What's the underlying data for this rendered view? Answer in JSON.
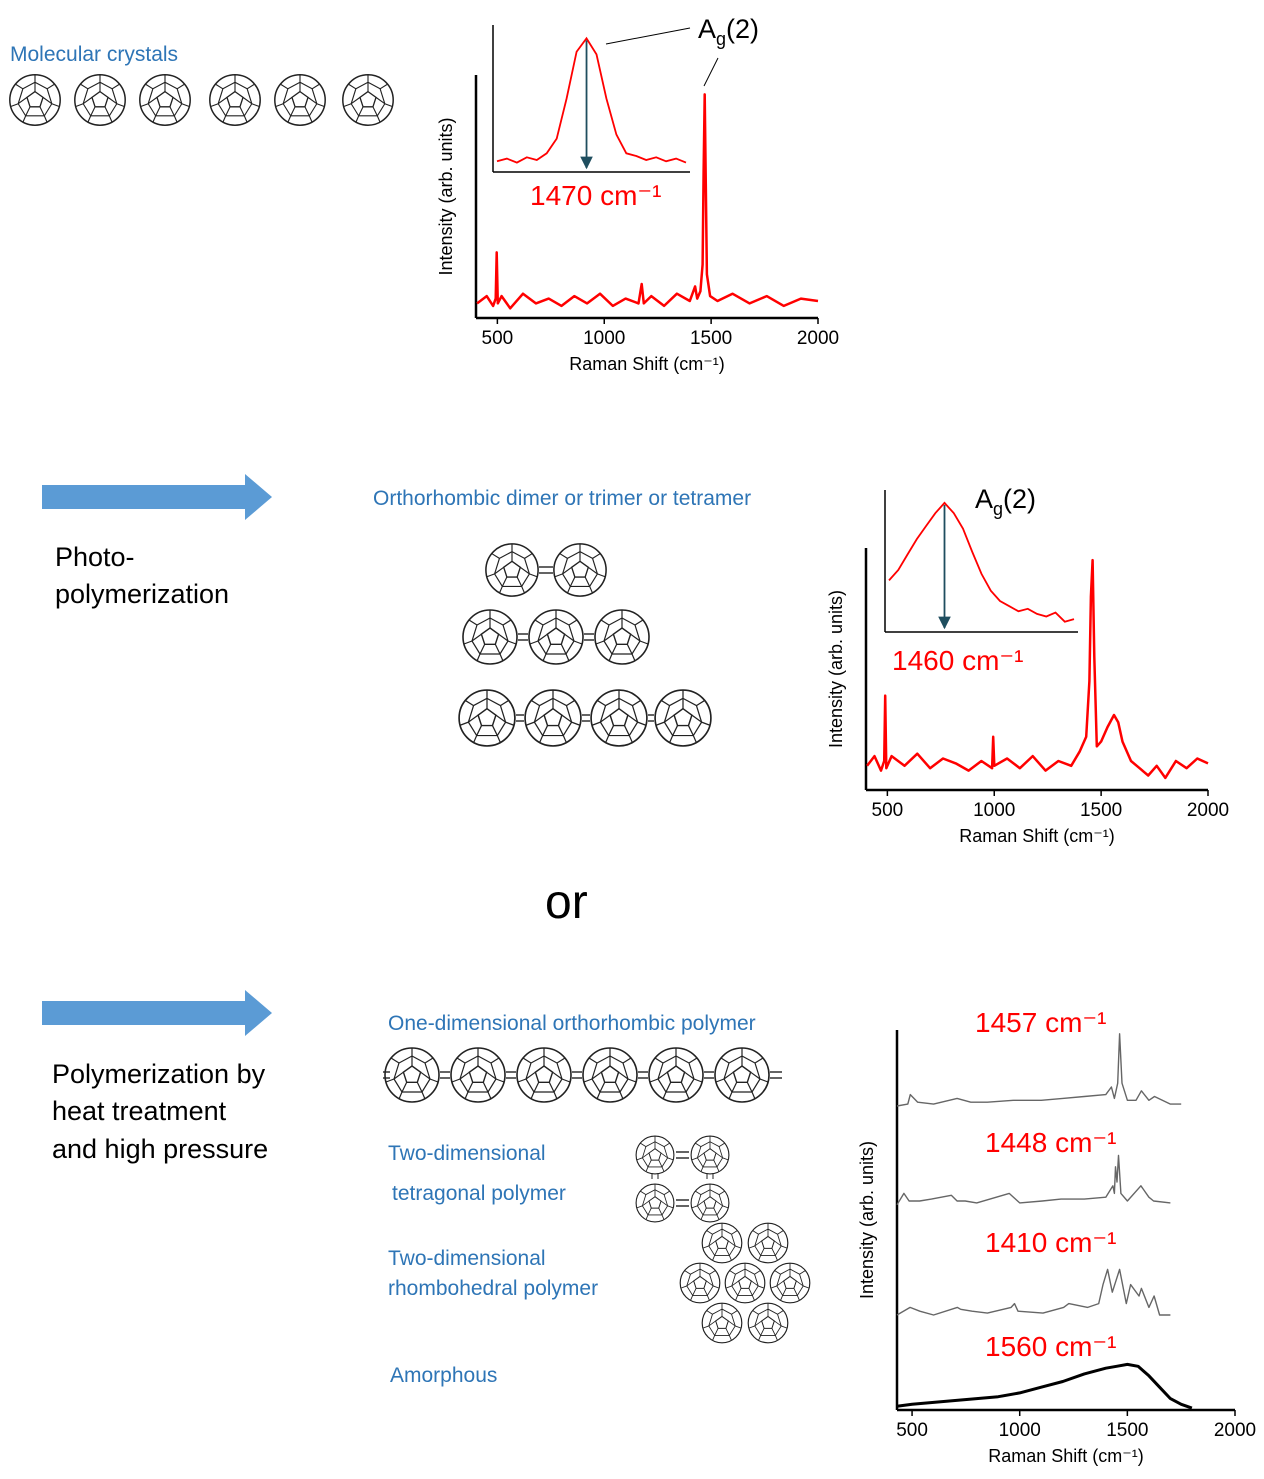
{
  "molecular_crystals": "Molecular crystals",
  "photo_label": [
    "Photo-",
    "polymerization"
  ],
  "dimer_label": "Orthorhombic dimer or trimer or tetramer",
  "or": "or",
  "heat_label": [
    "Polymerization by",
    "heat treatment",
    "and high pressure"
  ],
  "polymer_labels": {
    "one_d": "One-dimensional orthorhombic polymer",
    "tetragonal": [
      "Two-dimensional",
      "tetragonal polymer"
    ],
    "rhombohedral": [
      "Two-dimensional",
      "rhombohedral polymer"
    ],
    "amorphous": "Amorphous"
  },
  "spectra": [
    {
      "type": "line",
      "xlabel": "Raman Shift (cm⁻¹)",
      "ylabel": "Intensity (arb. units)",
      "xlim": [
        400,
        2000
      ],
      "ylim": [
        0,
        100
      ],
      "xticks": [
        500,
        1000,
        1500,
        2000
      ],
      "color": "#ff0000",
      "x": [
        405,
        450,
        480,
        492,
        497,
        502,
        520,
        560,
        620,
        680,
        740,
        800,
        860,
        920,
        980,
        1040,
        1100,
        1160,
        1175,
        1185,
        1220,
        1280,
        1340,
        1400,
        1425,
        1435,
        1450,
        1460,
        1465,
        1470,
        1475,
        1480,
        1495,
        1530,
        1600,
        1680,
        1760,
        1840,
        1920,
        2000
      ],
      "values": [
        6,
        9,
        5,
        8,
        27,
        6,
        9,
        4,
        10,
        6,
        8,
        5,
        9,
        6,
        10,
        5,
        8,
        6,
        14,
        6,
        9,
        5,
        10,
        7,
        13,
        8,
        11,
        22,
        60,
        92,
        55,
        18,
        9,
        7,
        10,
        6,
        9,
        5,
        8,
        7
      ],
      "inset": {
        "ylim": [
          0,
          110
        ],
        "values": [
          8,
          10,
          7,
          11,
          9,
          14,
          25,
          55,
          90,
          100,
          88,
          55,
          28,
          14,
          12,
          9,
          11,
          8,
          10,
          7
        ],
        "peak_label": "1470 cm⁻¹",
        "mode_label": [
          "A",
          "g",
          "(2)"
        ]
      }
    },
    {
      "type": "line",
      "xlabel": "Raman Shift (cm⁻¹)",
      "ylabel": "Intensity (arb. units)",
      "xlim": [
        400,
        2000
      ],
      "ylim": [
        0,
        100
      ],
      "xticks": [
        500,
        1000,
        1500,
        2000
      ],
      "color": "#ff0000",
      "x": [
        405,
        440,
        470,
        485,
        490,
        495,
        520,
        580,
        640,
        700,
        760,
        820,
        880,
        940,
        990,
        995,
        1000,
        1060,
        1120,
        1180,
        1240,
        1300,
        1360,
        1400,
        1430,
        1445,
        1452,
        1460,
        1468,
        1480,
        1500,
        1530,
        1560,
        1580,
        1600,
        1640,
        1680,
        1720,
        1760,
        1800,
        1850,
        1900,
        1950,
        2000
      ],
      "values": [
        10,
        14,
        8,
        12,
        39,
        9,
        14,
        10,
        15,
        9,
        13,
        11,
        8,
        12,
        9,
        22,
        10,
        13,
        9,
        14,
        8,
        12,
        10,
        16,
        22,
        45,
        80,
        95,
        55,
        18,
        20,
        26,
        31,
        28,
        20,
        12,
        9,
        6,
        10,
        5,
        12,
        9,
        13,
        11
      ],
      "inset": {
        "ylim": [
          0,
          110
        ],
        "values": [
          40,
          48,
          60,
          72,
          82,
          92,
          100,
          92,
          80,
          62,
          45,
          32,
          24,
          20,
          16,
          18,
          14,
          12,
          15,
          8,
          10
        ],
        "peak_label": "1460 cm⁻¹",
        "mode_label": [
          "A",
          "g",
          "(2)"
        ]
      }
    },
    {
      "type": "line",
      "xlabel": "Raman Shift (cm⁻¹)",
      "ylabel": "Intensity (arb. units)",
      "xlim": [
        430,
        2000
      ],
      "ylim": [
        0,
        100
      ],
      "xticks": [
        500,
        1000,
        1500,
        2000
      ],
      "series": [
        {
          "name": "1457 cm⁻¹",
          "color": "#666666",
          "x": [
            430,
            480,
            492,
            526,
            600,
            709,
            773,
            850,
            970,
            1100,
            1200,
            1300,
            1400,
            1426,
            1440,
            1455,
            1464,
            1475,
            1500,
            1540,
            1565,
            1600,
            1626,
            1700,
            1750
          ],
          "values": [
            80,
            80.5,
            83,
            81,
            80.5,
            82,
            81,
            81,
            81.5,
            81.5,
            82,
            82.5,
            83,
            85,
            82,
            86,
            99,
            86,
            81.5,
            81.5,
            84,
            81.5,
            82.5,
            80.5,
            80.5
          ]
        },
        {
          "name": "1448 cm⁻¹",
          "color": "#666666",
          "x": [
            430,
            462,
            486,
            535,
            590,
            682,
            709,
            747,
            800,
            951,
            1000,
            1105,
            1192,
            1300,
            1400,
            1433,
            1440,
            1445,
            1452,
            1459,
            1470,
            1500,
            1563,
            1600,
            1622,
            1700
          ],
          "values": [
            54,
            57,
            55,
            55,
            55.5,
            56.5,
            55,
            55,
            54.5,
            57,
            54.5,
            55,
            55.5,
            55.5,
            56,
            59,
            57,
            64,
            60,
            67,
            57,
            55,
            59,
            56,
            55,
            54.5
          ]
        },
        {
          "name": "1410 cm⁻¹",
          "color": "#666666",
          "x": [
            430,
            491,
            536,
            600,
            710,
            726,
            779,
            850,
            960,
            976,
            992,
            1108,
            1204,
            1228,
            1316,
            1367,
            1387,
            1408,
            1430,
            1464,
            1495,
            1515,
            1554,
            1565,
            1600,
            1624,
            1650,
            1700
          ],
          "values": [
            25,
            27,
            26,
            25,
            27,
            26.5,
            26,
            25.5,
            27,
            28,
            26,
            25.5,
            27,
            28,
            27,
            28,
            33,
            37,
            31,
            37,
            28,
            33,
            30,
            32,
            27,
            30,
            25,
            25
          ]
        },
        {
          "name": "1560 cm⁻¹",
          "color": "#000000",
          "x": [
            430,
            500,
            600,
            700,
            800,
            900,
            1000,
            1100,
            1200,
            1300,
            1400,
            1450,
            1500,
            1550,
            1600,
            1650,
            1700,
            1750,
            1800
          ],
          "values": [
            1,
            1.5,
            2,
            2.5,
            3,
            3.5,
            4.5,
            6,
            7.5,
            9.5,
            11,
            11.5,
            12,
            11.5,
            9,
            6,
            3,
            1.5,
            0.5
          ]
        }
      ]
    }
  ]
}
